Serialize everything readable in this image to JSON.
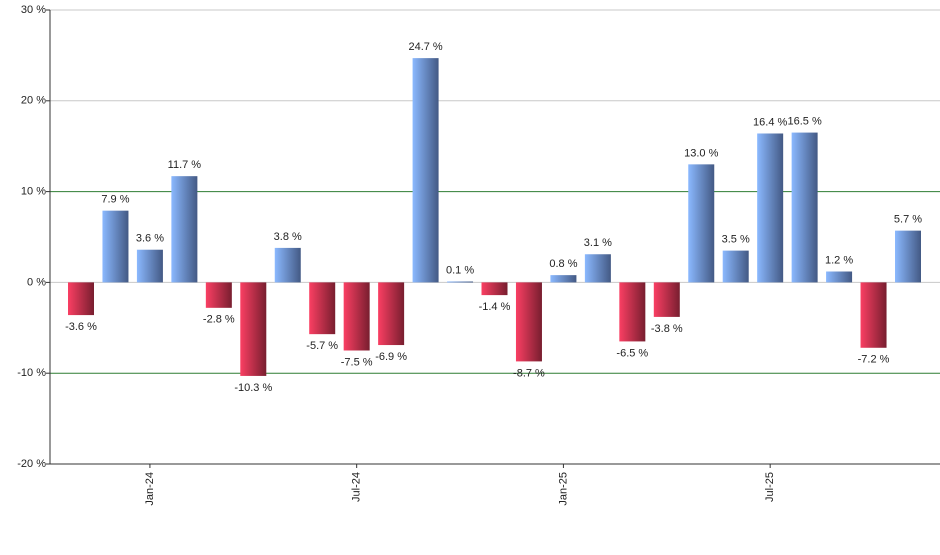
{
  "chart_data": {
    "type": "bar",
    "categories": [
      null,
      null,
      "Jan-24",
      null,
      null,
      null,
      null,
      null,
      "Jul-24",
      null,
      null,
      null,
      null,
      null,
      "Jan-25",
      null,
      null,
      null,
      null,
      null,
      "Jul-25",
      null,
      null,
      null,
      null
    ],
    "values": [
      -3.6,
      7.9,
      3.6,
      11.7,
      -2.8,
      -10.3,
      3.8,
      -5.7,
      -7.5,
      -6.9,
      24.7,
      0.1,
      -1.4,
      -8.7,
      0.8,
      3.1,
      -6.5,
      -3.8,
      13.0,
      3.5,
      16.4,
      16.5,
      1.2,
      -7.2,
      5.7
    ],
    "value_labels": [
      "-3.6 %",
      "7.9 %",
      "3.6 %",
      "11.7 %",
      "-2.8 %",
      "-10.3 %",
      "3.8 %",
      "-5.7 %",
      "-7.5 %",
      "-6.9 %",
      "24.7 %",
      "0.1 %",
      "-1.4 %",
      "-8.7 %",
      "0.8 %",
      "3.1 %",
      "-6.5 %",
      "-3.8 %",
      "13.0 %",
      "3.5 %",
      "16.4 %",
      "16.5 %",
      "1.2 %",
      "-7.2 %",
      "5.7 %"
    ],
    "positive_color": "#6f94dc",
    "negative_color": "#c8324f",
    "ylim": [
      -20,
      30
    ],
    "yticks": [
      {
        "value": -20,
        "label": "-20 %"
      },
      {
        "value": -10,
        "label": "-10 %"
      },
      {
        "value": 0,
        "label": "0 %"
      },
      {
        "value": 10,
        "label": "10 %"
      },
      {
        "value": 20,
        "label": "20 %"
      },
      {
        "value": 30,
        "label": "30 %"
      }
    ],
    "grid": true,
    "reference_lines": [
      10,
      -10
    ],
    "reference_color": "#2e7d32"
  }
}
